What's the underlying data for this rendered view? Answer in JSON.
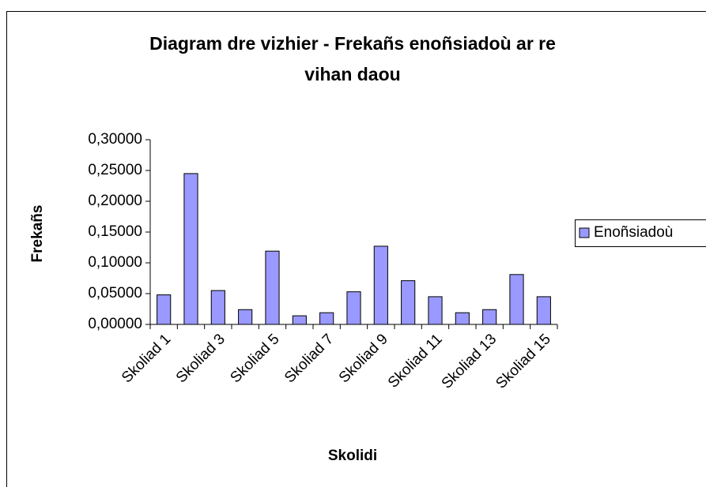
{
  "chart_data": {
    "type": "bar",
    "title": [
      "Diagram dre vizhier - Frekañs enoñsiadoù ar re",
      "vihan daou"
    ],
    "x_label": "Skolidi",
    "y_label": "Frekañs",
    "categories": [
      "Skoliad 1",
      null,
      "Skoliad 3",
      null,
      "Skoliad 5",
      null,
      "Skoliad 7",
      null,
      "Skoliad 9",
      null,
      "Skoliad 11",
      null,
      "Skoliad 13",
      null,
      "Skoliad 15"
    ],
    "series": [
      {
        "name": "Enoñsiadoù",
        "color": "#9999ff",
        "values": [
          0.048,
          0.245,
          0.055,
          0.024,
          0.119,
          0.014,
          0.019,
          0.053,
          0.127,
          0.071,
          0.045,
          0.019,
          0.024,
          0.081,
          0.045
        ]
      }
    ],
    "ylim": [
      0,
      0.3
    ],
    "yticks": [
      {
        "value": 0,
        "label": "0,00000"
      },
      {
        "value": 0.05,
        "label": "0,05000"
      },
      {
        "value": 0.1,
        "label": "0,10000"
      },
      {
        "value": 0.15,
        "label": "0,15000"
      },
      {
        "value": 0.2,
        "label": "0,20000"
      },
      {
        "value": 0.25,
        "label": "0,25000"
      },
      {
        "value": 0.3,
        "label": "0,30000"
      }
    ],
    "legend": "right"
  }
}
